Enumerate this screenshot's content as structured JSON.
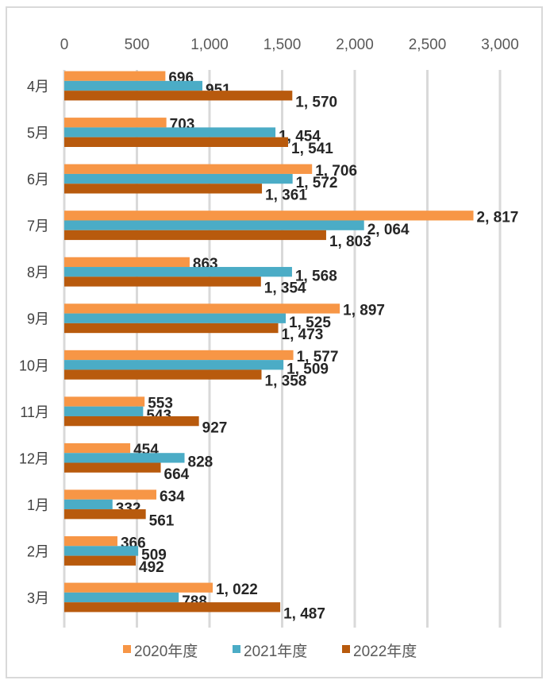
{
  "chart_data": {
    "type": "bar",
    "orientation": "horizontal",
    "categories": [
      "4月",
      "5月",
      "6月",
      "7月",
      "8月",
      "9月",
      "10月",
      "11月",
      "12月",
      "1月",
      "2月",
      "3月"
    ],
    "series": [
      {
        "name": "2020年度",
        "color": "#F79646",
        "values": [
          696,
          703,
          1706,
          2817,
          863,
          1897,
          1577,
          553,
          454,
          634,
          366,
          1022
        ]
      },
      {
        "name": "2021年度",
        "color": "#4BACC6",
        "values": [
          951,
          1454,
          1572,
          2064,
          1568,
          1525,
          1509,
          543,
          828,
          332,
          509,
          788
        ]
      },
      {
        "name": "2022年度",
        "color": "#B85A0D",
        "values": [
          1570,
          1541,
          1361,
          1803,
          1354,
          1473,
          1358,
          927,
          664,
          561,
          492,
          1487
        ]
      }
    ],
    "xlim": [
      0,
      3000
    ],
    "xticks": [
      "0",
      "500",
      "1,000",
      "1,500",
      "2,000",
      "2,500",
      "3,000"
    ],
    "xtick_values": [
      0,
      500,
      1000,
      1500,
      2000,
      2500,
      3000
    ],
    "axis_position": "top",
    "grid": true,
    "legend": "bottom",
    "data_labels": true
  }
}
